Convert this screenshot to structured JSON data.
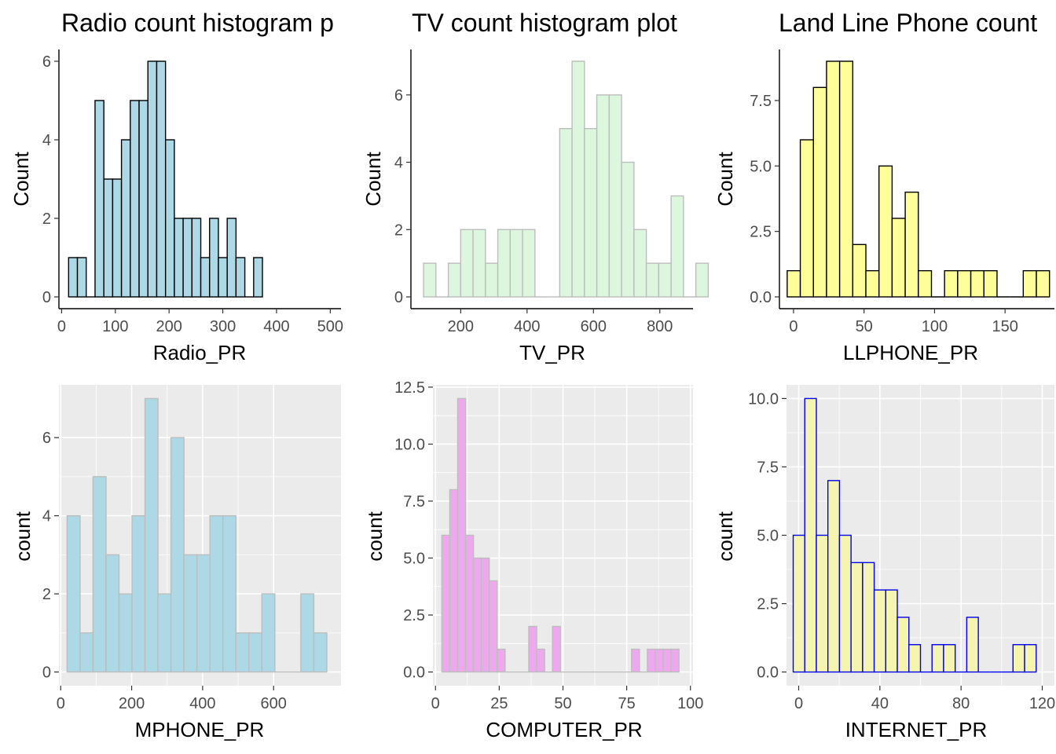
{
  "chart_data": [
    {
      "type": "bar",
      "title": "Radio count histogram p",
      "xlabel": "Radio_PR",
      "ylabel": "Count",
      "theme": "classic",
      "fill": "#add8e6",
      "stroke": "#000000",
      "xlim": [
        -5,
        520
      ],
      "ylim": [
        -0.3,
        6.3
      ],
      "xticks": [
        0,
        100,
        200,
        300,
        400,
        500
      ],
      "xtick_labels": [
        "0",
        "100",
        "200",
        "300",
        "400",
        "500"
      ],
      "yticks": [
        0,
        2,
        4,
        6
      ],
      "ytick_labels": [
        "0",
        "2",
        "4",
        "6"
      ],
      "bin_start": 13,
      "bin_width": 16.4,
      "counts": [
        1,
        1,
        0,
        5,
        3,
        3,
        4,
        5,
        5,
        6,
        6,
        4,
        2,
        2,
        2,
        1,
        2,
        1,
        2,
        1,
        0,
        1
      ]
    },
    {
      "type": "bar",
      "title": "TV count histogram plot",
      "xlabel": "TV_PR",
      "ylabel": "Count",
      "theme": "classic",
      "fill": "#ddf7de",
      "stroke": "#bdbdbd",
      "xlim": [
        50,
        900
      ],
      "ylim": [
        -0.35,
        7.35
      ],
      "xticks": [
        200,
        400,
        600,
        800
      ],
      "xtick_labels": [
        "200",
        "400",
        "600",
        "800"
      ],
      "yticks": [
        0,
        2,
        4,
        6
      ],
      "ytick_labels": [
        "0",
        "2",
        "4",
        "6"
      ],
      "bin_start": 88,
      "bin_width": 37.3,
      "counts": [
        1,
        0,
        1,
        2,
        2,
        1,
        2,
        2,
        2,
        0,
        0,
        5,
        7,
        5,
        6,
        6,
        4,
        2,
        1,
        1,
        3,
        0,
        1
      ]
    },
    {
      "type": "bar",
      "title": "Land Line Phone count",
      "xlabel": "LLPHONE_PR",
      "ylabel": "Count",
      "theme": "classic",
      "fill": "#ffff99",
      "stroke": "#000000",
      "xlim": [
        -10,
        185
      ],
      "ylim": [
        -0.45,
        9.45
      ],
      "xticks": [
        0,
        50,
        100,
        150
      ],
      "xtick_labels": [
        "0",
        "50",
        "100",
        "150"
      ],
      "yticks": [
        0,
        2.5,
        5,
        7.5
      ],
      "ytick_labels": [
        "0.0",
        "2.5",
        "5.0",
        "7.5"
      ],
      "bin_start": -4.5,
      "bin_width": 9.3,
      "counts": [
        1,
        6,
        8,
        9,
        9,
        2,
        1,
        5,
        3,
        4,
        1,
        0,
        1,
        1,
        1,
        1,
        0,
        0,
        1,
        1
      ]
    },
    {
      "type": "bar",
      "title": "",
      "xlabel": "MPHONE_PR",
      "ylabel": "count",
      "theme": "grey",
      "fill": "#add8e6",
      "stroke": "#bdbdbd",
      "xlim": [
        -5,
        790
      ],
      "ylim": [
        -0.35,
        7.35
      ],
      "xticks": [
        0,
        200,
        400,
        600
      ],
      "xtick_labels": [
        "0",
        "200",
        "400",
        "600"
      ],
      "yticks": [
        0,
        2,
        4,
        6
      ],
      "ytick_labels": [
        "0",
        "2",
        "4",
        "6"
      ],
      "bin_start": 18,
      "bin_width": 36.6,
      "counts": [
        4,
        1,
        5,
        3,
        2,
        4,
        7,
        2,
        6,
        3,
        3,
        4,
        4,
        1,
        1,
        2,
        0,
        0,
        2,
        1
      ]
    },
    {
      "type": "bar",
      "title": "",
      "xlabel": "COMPUTER_PR",
      "ylabel": "count",
      "theme": "grey",
      "fill": "#eea9ee",
      "stroke": "#bdbdbd",
      "xlim": [
        -1,
        101
      ],
      "ylim": [
        -0.6,
        12.6
      ],
      "xticks": [
        0,
        25,
        50,
        75,
        100
      ],
      "xtick_labels": [
        "0",
        "25",
        "50",
        "75",
        "100"
      ],
      "yticks": [
        0,
        2.5,
        5,
        7.5,
        10,
        12.5
      ],
      "ytick_labels": [
        "0.0",
        "2.5",
        "5.0",
        "7.5",
        "10.0",
        "12.5"
      ],
      "bin_start": 2.5,
      "bin_width": 3.1,
      "counts": [
        6,
        8,
        12,
        6,
        5,
        5,
        4,
        1,
        0,
        0,
        0,
        2,
        1,
        0,
        2,
        0,
        0,
        0,
        0,
        0,
        0,
        0,
        0,
        0,
        1,
        0,
        1,
        1,
        1,
        1
      ]
    },
    {
      "type": "bar",
      "title": "",
      "xlabel": "INTERNET_PR",
      "ylabel": "count",
      "theme": "grey",
      "fill": "#f5f5b0",
      "stroke": "#0000ee",
      "xlim": [
        -6,
        126
      ],
      "ylim": [
        -0.5,
        10.5
      ],
      "xticks": [
        0,
        40,
        80,
        120
      ],
      "xtick_labels": [
        "0",
        "40",
        "80",
        "120"
      ],
      "yticks": [
        0,
        2.5,
        5,
        7.5,
        10
      ],
      "ytick_labels": [
        "0.0",
        "2.5",
        "5.0",
        "7.5",
        "10.0"
      ],
      "bin_start": -2.7,
      "bin_width": 5.7,
      "counts": [
        5,
        10,
        5,
        7,
        5,
        4,
        4,
        3,
        3,
        2,
        1,
        0,
        1,
        1,
        0,
        2,
        0,
        0,
        0,
        1,
        1
      ]
    }
  ]
}
